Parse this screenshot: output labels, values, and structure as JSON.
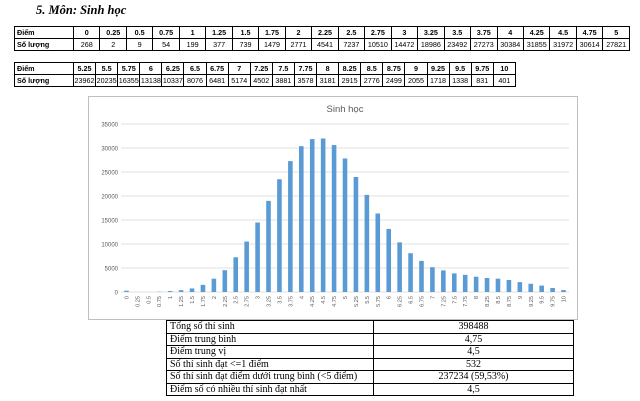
{
  "section_title": "5.  Môn: Sinh học",
  "tables": {
    "row_labels": {
      "score": "Điểm",
      "count": "Số lượng"
    },
    "t1": {
      "scores": [
        "0",
        "0.25",
        "0.5",
        "0.75",
        "1",
        "1.25",
        "1.5",
        "1.75",
        "2",
        "2.25",
        "2.5",
        "2.75",
        "3",
        "3.25",
        "3.5",
        "3.75",
        "4",
        "4.25",
        "4.5",
        "4.75",
        "5"
      ],
      "counts": [
        "268",
        "2",
        "9",
        "54",
        "199",
        "377",
        "739",
        "1479",
        "2771",
        "4541",
        "7237",
        "10510",
        "14472",
        "18986",
        "23492",
        "27273",
        "30384",
        "31855",
        "31972",
        "30614",
        "27821"
      ]
    },
    "t2": {
      "scores": [
        "5.25",
        "5.5",
        "5.75",
        "6",
        "6.25",
        "6.5",
        "6.75",
        "7",
        "7.25",
        "7.5",
        "7.75",
        "8",
        "8.25",
        "8.5",
        "8.75",
        "9",
        "9.25",
        "9.5",
        "9.75",
        "10"
      ],
      "counts": [
        "23962",
        "20235",
        "16355",
        "13138",
        "10337",
        "8076",
        "6481",
        "5174",
        "4502",
        "3881",
        "3578",
        "3181",
        "2915",
        "2776",
        "2499",
        "2055",
        "1718",
        "1338",
        "831",
        "401"
      ]
    }
  },
  "chart_data": {
    "type": "bar",
    "title": "Sinh học",
    "xlabel": "",
    "ylabel": "",
    "categories": [
      "0",
      "0.25",
      "0.5",
      "0.75",
      "1",
      "1.25",
      "1.5",
      "1.75",
      "2",
      "2.25",
      "2.5",
      "2.75",
      "3",
      "3.25",
      "3.5",
      "3.75",
      "4",
      "4.25",
      "4.5",
      "4.75",
      "5",
      "5.25",
      "5.5",
      "5.75",
      "6",
      "6.25",
      "6.5",
      "6.75",
      "7",
      "7.25",
      "7.5",
      "7.75",
      "8",
      "8.25",
      "8.5",
      "8.75",
      "9",
      "9.25",
      "9.5",
      "9.75",
      "10"
    ],
    "values": [
      268,
      2,
      9,
      54,
      199,
      377,
      739,
      1479,
      2771,
      4541,
      7237,
      10510,
      14472,
      18986,
      23492,
      27273,
      30384,
      31855,
      31972,
      30614,
      27821,
      23962,
      20235,
      16355,
      13138,
      10337,
      8076,
      6481,
      5174,
      4502,
      3881,
      3578,
      3181,
      2915,
      2776,
      2499,
      2055,
      1718,
      1338,
      831,
      401
    ],
    "yticks": [
      "0",
      "5000",
      "10000",
      "15000",
      "20000",
      "25000",
      "30000",
      "35000"
    ],
    "ylim": [
      0,
      35000
    ],
    "grid": true,
    "legend": "none",
    "bar_color": "#5b9bd5",
    "grid_color": "#d9d9d9"
  },
  "summary": [
    {
      "label": "Tổng số thí sinh",
      "value": "398488"
    },
    {
      "label": "Điểm trung bình",
      "value": "4,75"
    },
    {
      "label": "Điểm trung vị",
      "value": "4,5"
    },
    {
      "label": "Số thí sinh đạt <=1 điểm",
      "value": "532"
    },
    {
      "label": "Số thí sinh đạt điểm dưới trung bình (<5 điểm)",
      "value": "237234 (59,53%)"
    },
    {
      "label": "Điểm số có nhiều thí sinh đạt nhất",
      "value": "4,5"
    }
  ]
}
